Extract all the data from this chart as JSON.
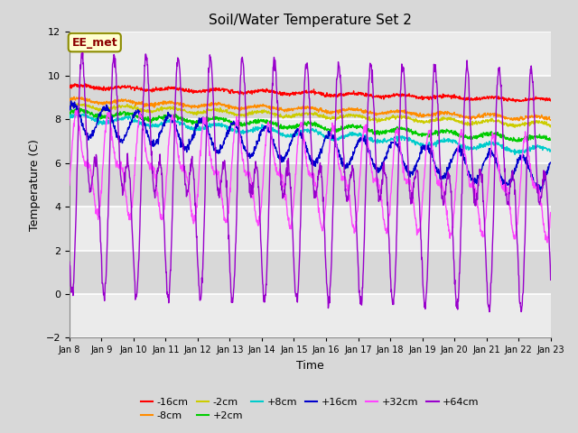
{
  "title": "Soil/Water Temperature Set 2",
  "xlabel": "Time",
  "ylabel": "Temperature (C)",
  "xlim": [
    0,
    15
  ],
  "ylim": [
    -2,
    12
  ],
  "yticks": [
    -2,
    0,
    2,
    4,
    6,
    8,
    10,
    12
  ],
  "xtick_labels": [
    "Jan 8",
    "Jan 9",
    "Jan 10",
    "Jan 11",
    "Jan 12",
    "Jan 13",
    "Jan 14",
    "Jan 15",
    "Jan 16",
    "Jan 17",
    "Jan 18",
    "Jan 19",
    "Jan 20",
    "Jan 21",
    "Jan 22",
    "Jan 23"
  ],
  "annotation_text": "EE_met",
  "annotation_box_color": "#FFFFD0",
  "annotation_text_color": "#8B0000",
  "background_color": "#DCDCDC",
  "plot_bg_color": "#DCDCDC",
  "grid_color": "white",
  "series": [
    {
      "label": "-16cm",
      "color": "#FF0000"
    },
    {
      "label": "-8cm",
      "color": "#FF8C00"
    },
    {
      "label": "-2cm",
      "color": "#CCCC00"
    },
    {
      "label": "+2cm",
      "color": "#00CC00"
    },
    {
      "label": "+8cm",
      "color": "#00CCCC"
    },
    {
      "label": "+16cm",
      "color": "#0000CC"
    },
    {
      "label": "+32cm",
      "color": "#FF44FF"
    },
    {
      "label": "+64cm",
      "color": "#9900CC"
    }
  ]
}
